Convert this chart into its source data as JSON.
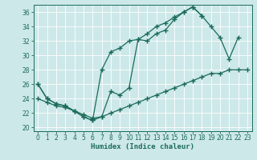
{
  "xlabel": "Humidex (Indice chaleur)",
  "background_color": "#cde8e8",
  "line_color": "#1a6b5a",
  "xlim": [
    -0.5,
    23.5
  ],
  "ylim": [
    19.5,
    37.0
  ],
  "yticks": [
    20,
    22,
    24,
    26,
    28,
    30,
    32,
    34,
    36
  ],
  "xticks": [
    0,
    1,
    2,
    3,
    4,
    5,
    6,
    7,
    8,
    9,
    10,
    11,
    12,
    13,
    14,
    15,
    16,
    17,
    18,
    19,
    20,
    21,
    22,
    23
  ],
  "line_upper_x": [
    0,
    1,
    2,
    3,
    4,
    5,
    6,
    7,
    8,
    9,
    10,
    11,
    12,
    13,
    14,
    15,
    16,
    17,
    18
  ],
  "line_upper_y": [
    26.0,
    24.0,
    23.3,
    23.0,
    22.3,
    21.5,
    21.0,
    28.0,
    30.5,
    31.0,
    32.0,
    32.2,
    33.0,
    34.0,
    34.5,
    35.3,
    36.0,
    36.7,
    35.5
  ],
  "line_mid_x": [
    0,
    1,
    2,
    3,
    4,
    5,
    6,
    7,
    8,
    9,
    10,
    11,
    12,
    13,
    14,
    15,
    16,
    17,
    18,
    19,
    20,
    21,
    22
  ],
  "line_mid_y": [
    26.0,
    24.0,
    23.3,
    23.0,
    22.3,
    21.5,
    21.0,
    21.5,
    25.0,
    24.5,
    25.5,
    32.2,
    32.0,
    33.0,
    33.5,
    35.0,
    36.0,
    36.7,
    35.5,
    34.0,
    32.5,
    29.5,
    32.5
  ],
  "line_low_x": [
    0,
    1,
    2,
    3,
    4,
    5,
    6,
    7,
    8,
    9,
    10,
    11,
    12,
    13,
    14,
    15,
    16,
    17,
    18,
    19,
    20,
    21,
    22,
    23
  ],
  "line_low_y": [
    24.0,
    23.5,
    23.0,
    22.8,
    22.3,
    21.8,
    21.3,
    21.5,
    22.0,
    22.5,
    23.0,
    23.5,
    24.0,
    24.5,
    25.0,
    25.5,
    26.0,
    26.5,
    27.0,
    27.5,
    27.5,
    28.0,
    28.0,
    28.0
  ]
}
